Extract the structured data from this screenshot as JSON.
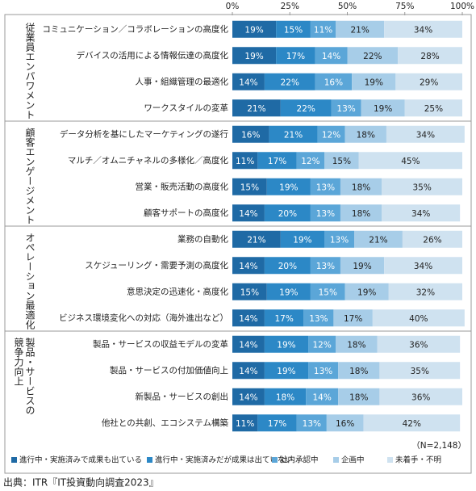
{
  "chart_data": {
    "type": "stacked-bar-horizontal",
    "groups": [
      {
        "label": "従業員エンパワメント",
        "categories": [
          "コミュニケーション／コラボレーションの高度化",
          "デバイスの活用による情報伝達の高度化",
          "人事・組織管理の最適化",
          "ワークスタイルの変革"
        ]
      },
      {
        "label": "顧客エンゲージメント",
        "categories": [
          "データ分析を基にしたマーケティングの遂行",
          "マルチ／オムニチャネルの多様化／高度化",
          "営業・販売活動の高度化",
          "顧客サポートの高度化"
        ]
      },
      {
        "label": "オペレーション最適化",
        "categories": [
          "業務の自動化",
          "スケジューリング・需要予測の高度化",
          "意思決定の迅速化・高度化",
          "ビジネス環境変化への対応（海外進出など）"
        ]
      },
      {
        "label": "製品・サービスの競争力向上",
        "categories": [
          "製品・サービスの収益モデルの変革",
          "製品・サービスの付加価値向上",
          "新製品・サービスの創出",
          "他社との共創、エコシステム構築"
        ]
      }
    ],
    "series": [
      {
        "name": "進行中・実施済みで成果も出ている",
        "color": "#1f6aa5",
        "values": [
          19,
          19,
          14,
          21,
          16,
          11,
          15,
          14,
          21,
          14,
          15,
          14,
          14,
          14,
          14,
          11
        ],
        "value_labels": [
          "19%",
          "19%",
          "14%",
          "21%",
          "16%",
          "11%",
          "15%",
          "14%",
          "21%",
          "14%",
          "15%",
          "14%",
          "14%",
          "14%",
          "14%",
          "11%"
        ]
      },
      {
        "name": "進行中・実施済みだが成果は出ていない",
        "color": "#2c88c6",
        "values": [
          15,
          17,
          22,
          22,
          21,
          17,
          19,
          20,
          19,
          20,
          19,
          17,
          19,
          19,
          18,
          17
        ],
        "value_labels": [
          "15%",
          "17%",
          "22%",
          "22%",
          "21%",
          "17%",
          "19%",
          "20%",
          "19%",
          "20%",
          "19%",
          "17%",
          "19%",
          "19%",
          "18%",
          "17%"
        ]
      },
      {
        "name": "社内承認中",
        "color": "#5ba6d8",
        "values": [
          11,
          14,
          16,
          13,
          12,
          12,
          13,
          13,
          13,
          13,
          15,
          13,
          12,
          13,
          14,
          13
        ],
        "value_labels": [
          "11%",
          "14%",
          "16%",
          "13%",
          "12%",
          "12%",
          "13%",
          "13%",
          "13%",
          "13%",
          "15%",
          "13%",
          "12%",
          "13%",
          "14%",
          "13%"
        ]
      },
      {
        "name": "企画中",
        "color": "#a7cde8",
        "values": [
          21,
          22,
          19,
          19,
          18,
          15,
          18,
          18,
          21,
          19,
          19,
          17,
          18,
          18,
          18,
          16
        ],
        "value_labels": [
          "21%",
          "22%",
          "19%",
          "19%",
          "18%",
          "15%",
          "18%",
          "18%",
          "21%",
          "19%",
          "19%",
          "17%",
          "18%",
          "18%",
          "18%",
          "16%"
        ]
      },
      {
        "name": "未着手・不明",
        "color": "#cfe2f0",
        "values": [
          34,
          28,
          29,
          25,
          34,
          45,
          35,
          34,
          26,
          34,
          32,
          40,
          36,
          35,
          36,
          42
        ],
        "value_labels": [
          "34%",
          "28%",
          "29%",
          "25%",
          "34%",
          "45%",
          "35%",
          "34%",
          "26%",
          "34%",
          "32%",
          "40%",
          "36%",
          "35%",
          "36%",
          "42%"
        ]
      }
    ],
    "xlim": [
      0,
      100
    ],
    "xticks": [
      {
        "value": 0,
        "label": "0%"
      },
      {
        "value": 25,
        "label": "25%"
      },
      {
        "value": 50,
        "label": "50%"
      },
      {
        "value": 75,
        "label": "75%"
      },
      {
        "value": 100,
        "label": "100%"
      }
    ],
    "note": "（N=2,148）",
    "source": "出典：ITR『IT投資動向調査2023』"
  }
}
